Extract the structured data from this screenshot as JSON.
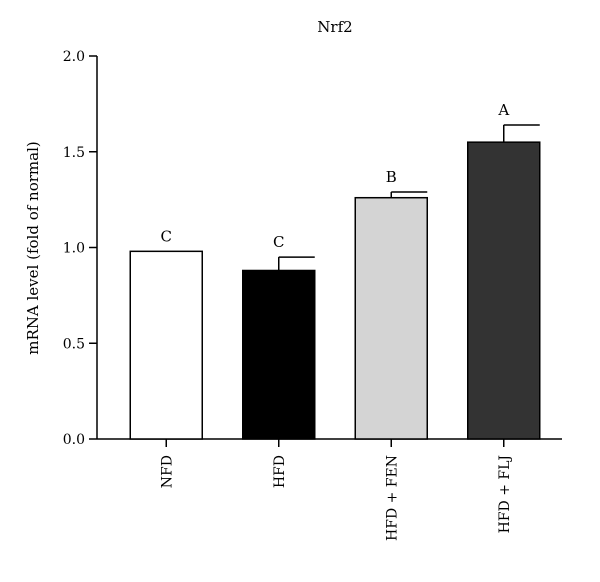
{
  "chart_data": {
    "type": "bar",
    "title": "Nrf2",
    "xlabel": "",
    "ylabel": "mRNA level (fold of normal)",
    "ylim": [
      0,
      2.0
    ],
    "yticks": [
      "0.0",
      "0.5",
      "1.0",
      "1.5",
      "2.0"
    ],
    "categories": [
      "NFD",
      "HFD",
      "HFD + FEN",
      "HFD + FLJ"
    ],
    "values": [
      0.98,
      0.88,
      1.26,
      1.55
    ],
    "errors": [
      0.0,
      0.07,
      0.03,
      0.09
    ],
    "significance": [
      "C",
      "C",
      "B",
      "A"
    ],
    "colors": [
      "#ffffff",
      "#000000",
      "#d4d4d4",
      "#333333"
    ],
    "grid": false,
    "legend": "none"
  }
}
